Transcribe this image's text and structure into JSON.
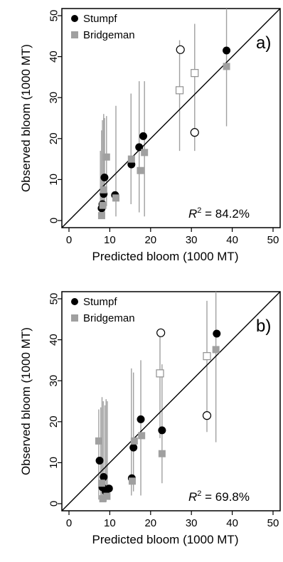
{
  "chart_data": [
    {
      "type": "scatter",
      "panel_label": "a)",
      "xlabel": "Predicted bloom (1000 MT)",
      "ylabel": "Observed bloom (1000 MT)",
      "xlim": [
        0,
        50
      ],
      "ylim": [
        0,
        50
      ],
      "xticks": [
        "0",
        "10",
        "20",
        "30",
        "40",
        "50"
      ],
      "yticks": [
        "0",
        "10",
        "20",
        "30",
        "40",
        "50"
      ],
      "reference_line": "1:1 line",
      "grid": false,
      "legend": {
        "placement": "top-left",
        "entries": [
          "Stumpf",
          "Bridgeman"
        ]
      },
      "annotation": {
        "label": "R",
        "superscript": "2",
        "text": " = 84.2%"
      },
      "colors": {
        "stumpf": "#000000",
        "bridgeman": "#a0a0a0",
        "error_bar": "#a0a0a0"
      },
      "series": [
        {
          "name": "Stumpf",
          "marker": "filled-circle",
          "points": [
            {
              "x": 8.0,
              "y": 3.0
            },
            {
              "x": 8.2,
              "y": 4.0
            },
            {
              "x": 8.5,
              "y": 6.5
            },
            {
              "x": 8.7,
              "y": 10.5
            },
            {
              "x": 11.3,
              "y": 6.2
            },
            {
              "x": 15.3,
              "y": 13.7
            },
            {
              "x": 17.2,
              "y": 17.9
            },
            {
              "x": 18.2,
              "y": 20.6
            },
            {
              "x": 38.6,
              "y": 41.5
            }
          ]
        },
        {
          "name": "Bridgeman",
          "marker": "filled-square",
          "points": [
            {
              "x": 8.0,
              "y": 1.2
            },
            {
              "x": 8.3,
              "y": 3.7
            },
            {
              "x": 8.5,
              "y": 7.5
            },
            {
              "x": 9.2,
              "y": 15.5
            },
            {
              "x": 11.5,
              "y": 5.5
            },
            {
              "x": 15.3,
              "y": 15.0
            },
            {
              "x": 17.5,
              "y": 12.2
            },
            {
              "x": 18.5,
              "y": 16.6
            },
            {
              "x": 38.6,
              "y": 37.6
            }
          ]
        },
        {
          "name": "Stumpf (open)",
          "marker": "open-circle",
          "points": [
            {
              "x": 27.3,
              "y": 41.7
            },
            {
              "x": 30.8,
              "y": 21.5
            }
          ]
        },
        {
          "name": "Bridgeman (open)",
          "marker": "open-square",
          "points": [
            {
              "x": 27.1,
              "y": 31.8
            },
            {
              "x": 30.8,
              "y": 36.0
            }
          ]
        }
      ],
      "error_bars": [
        {
          "x": 7.7,
          "low": 0.5,
          "high": 17.0
        },
        {
          "x": 8.0,
          "low": 0.5,
          "high": 22.0
        },
        {
          "x": 8.2,
          "low": 0.5,
          "high": 24.5
        },
        {
          "x": 8.5,
          "low": 1.0,
          "high": 26.0
        },
        {
          "x": 8.7,
          "low": 1.5,
          "high": 25.0
        },
        {
          "x": 9.2,
          "low": 3.5,
          "high": 25.5
        },
        {
          "x": 11.5,
          "low": 1.0,
          "high": 28.0
        },
        {
          "x": 15.2,
          "low": 4.0,
          "high": 31.0
        },
        {
          "x": 17.2,
          "low": 2.0,
          "high": 34.0
        },
        {
          "x": 18.5,
          "low": 1.0,
          "high": 34.0
        },
        {
          "x": 27.1,
          "low": 17.0,
          "high": 44.0
        },
        {
          "x": 30.8,
          "low": 17.0,
          "high": 48.0
        },
        {
          "x": 38.6,
          "low": 23.0,
          "high": 52.0
        }
      ]
    },
    {
      "type": "scatter",
      "panel_label": "b)",
      "xlabel": "Predicted bloom (1000 MT)",
      "ylabel": "Observed bloom (1000 MT)",
      "xlim": [
        0,
        50
      ],
      "ylim": [
        0,
        50
      ],
      "xticks": [
        "0",
        "10",
        "20",
        "30",
        "40",
        "50"
      ],
      "yticks": [
        "0",
        "10",
        "20",
        "30",
        "40",
        "50"
      ],
      "reference_line": "1:1 line",
      "grid": false,
      "legend": {
        "placement": "top-left",
        "entries": [
          "Stumpf",
          "Bridgeman"
        ]
      },
      "annotation": {
        "label": "R",
        "superscript": "2",
        "text": " = 69.8%"
      },
      "colors": {
        "stumpf": "#000000",
        "bridgeman": "#a0a0a0",
        "error_bar": "#a0a0a0"
      },
      "series": [
        {
          "name": "Stumpf",
          "marker": "filled-circle",
          "points": [
            {
              "x": 7.5,
              "y": 10.5
            },
            {
              "x": 8.2,
              "y": 4.0
            },
            {
              "x": 8.5,
              "y": 6.5
            },
            {
              "x": 9.0,
              "y": 3.0
            },
            {
              "x": 9.8,
              "y": 3.7
            },
            {
              "x": 15.4,
              "y": 6.2
            },
            {
              "x": 15.8,
              "y": 13.7
            },
            {
              "x": 17.6,
              "y": 20.6
            },
            {
              "x": 22.8,
              "y": 17.9
            },
            {
              "x": 36.2,
              "y": 41.5
            }
          ]
        },
        {
          "name": "Bridgeman",
          "marker": "filled-square",
          "points": [
            {
              "x": 7.3,
              "y": 15.3
            },
            {
              "x": 8.0,
              "y": 5.0
            },
            {
              "x": 8.3,
              "y": 1.2
            },
            {
              "x": 9.3,
              "y": 1.8
            },
            {
              "x": 15.5,
              "y": 5.5
            },
            {
              "x": 16.0,
              "y": 15.3
            },
            {
              "x": 17.8,
              "y": 16.6
            },
            {
              "x": 22.8,
              "y": 12.2
            },
            {
              "x": 36.0,
              "y": 37.6
            }
          ]
        },
        {
          "name": "Stumpf (open)",
          "marker": "open-circle",
          "points": [
            {
              "x": 22.5,
              "y": 41.7
            },
            {
              "x": 33.8,
              "y": 21.5
            }
          ]
        },
        {
          "name": "Bridgeman (open)",
          "marker": "open-square",
          "points": [
            {
              "x": 22.3,
              "y": 31.8
            },
            {
              "x": 33.8,
              "y": 36.0
            }
          ]
        }
      ],
      "error_bars": [
        {
          "x": 7.3,
          "low": 1.0,
          "high": 23.0
        },
        {
          "x": 7.8,
          "low": 0.5,
          "high": 23.5
        },
        {
          "x": 8.1,
          "low": 1.0,
          "high": 26.0
        },
        {
          "x": 8.4,
          "low": 0.5,
          "high": 25.0
        },
        {
          "x": 8.8,
          "low": 0.5,
          "high": 24.0
        },
        {
          "x": 9.1,
          "low": 0.5,
          "high": 25.5
        },
        {
          "x": 9.4,
          "low": 1.5,
          "high": 25.0
        },
        {
          "x": 15.3,
          "low": 2.0,
          "high": 33.0
        },
        {
          "x": 15.8,
          "low": 3.0,
          "high": 32.0
        },
        {
          "x": 17.6,
          "low": 2.0,
          "high": 35.0
        },
        {
          "x": 22.3,
          "low": 16.0,
          "high": 42.0
        },
        {
          "x": 22.8,
          "low": 5.0,
          "high": 34.0
        },
        {
          "x": 33.8,
          "low": 17.5,
          "high": 49.5
        },
        {
          "x": 36.0,
          "low": 15.0,
          "high": 52.0
        }
      ]
    }
  ]
}
